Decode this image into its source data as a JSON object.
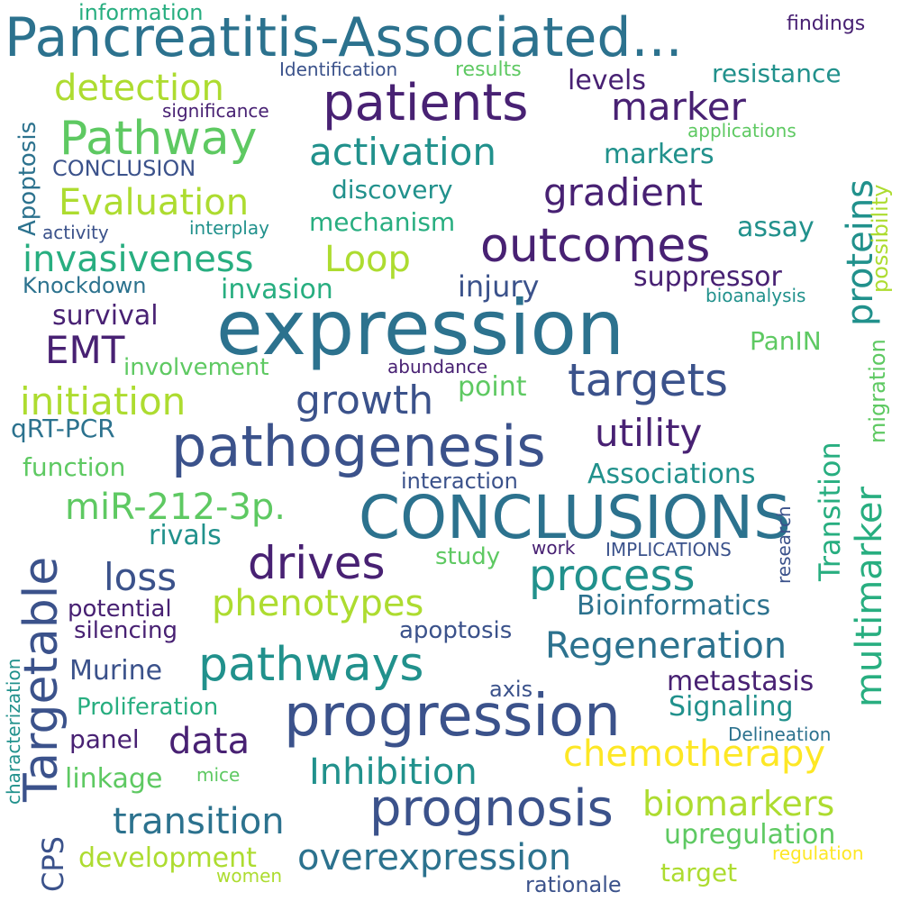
{
  "palette": {
    "dark_purple": "#482173",
    "indigo": "#3b528b",
    "blue": "#2c728e",
    "teal": "#21918c",
    "green": "#28ae80",
    "light_green": "#5ec962",
    "lime": "#addc30",
    "yellow": "#fde725"
  },
  "words": [
    "Pancreatitis-Associated...",
    "expression",
    "CONCLUSIONS",
    "pathogenesis",
    "progression",
    "prognosis",
    "patients",
    "outcomes",
    "targets",
    "pathways",
    "Targetable",
    "drives",
    "process",
    "Pathway",
    "detection",
    "activation",
    "gradient",
    "marker",
    "proteins",
    "Evaluation",
    "invasiveness",
    "Loop",
    "EMT",
    "initiation",
    "growth",
    "utility",
    "miR-212-3p.",
    "multimarker",
    "phenotypes",
    "loss",
    "Regeneration",
    "chemotherapy",
    "transition",
    "overexpression",
    "biomarkers",
    "Inhibition",
    "data",
    "Transition",
    "resistance",
    "information",
    "findings",
    "Identification",
    "results",
    "levels",
    "significance",
    "applications",
    "CONCLUSION",
    "markers",
    "discovery",
    "Apoptosis",
    "mechanism",
    "assay",
    "activity",
    "interplay",
    "possibility",
    "suppressor",
    "Knockdown",
    "invasion",
    "injury",
    "bioanalysis",
    "survival",
    "PanIN",
    "migration",
    "involvement",
    "abundance",
    "point",
    "qRT-PCR",
    "function",
    "interaction",
    "Associations",
    "rivals",
    "research",
    "study",
    "work",
    "IMPLICATIONS",
    "potential",
    "silencing",
    "Bioinformatics",
    "apoptosis",
    "Murine",
    "metastasis",
    "axis",
    "Proliferation",
    "Signaling",
    "panel",
    "Delineation",
    "characterization",
    "linkage",
    "mice",
    "CPS",
    "upregulation",
    "development",
    "regulation",
    "women",
    "target",
    "rationale"
  ]
}
